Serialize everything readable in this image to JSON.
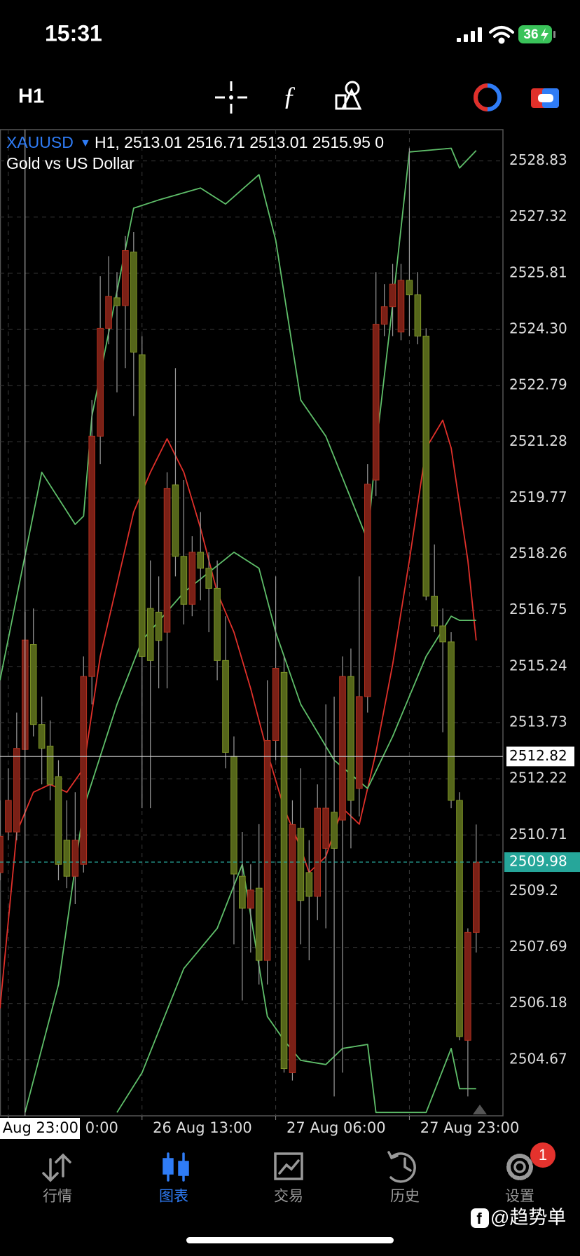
{
  "status_bar": {
    "time": "15:31",
    "battery": "36"
  },
  "toolbar": {
    "timeframe": "H1"
  },
  "chart_data": {
    "type": "candlestick",
    "symbol": "XAUUSD",
    "info": "H1, 2513.01 2516.71 2513.01 2515.95 0",
    "subtitle": "Gold vs US Dollar",
    "up_color": "#7a2016",
    "down_color": "#55661a",
    "xlim": [
      0,
      60.2
    ],
    "ylim": [
      2503.16,
      2529.67
    ],
    "yticks": [
      2528.83,
      2527.32,
      2525.81,
      {
        "value": 2524.3,
        "label": "2524.30"
      },
      2522.79,
      2521.28,
      2519.77,
      2518.26,
      2516.75,
      2515.24,
      2513.73,
      2512.22,
      2510.71,
      2509.2,
      2507.69,
      2506.18,
      2504.67
    ],
    "xticks": [
      {
        "value": 1,
        "label": "0:00"
      },
      {
        "value": 17,
        "label": "26 Aug 13:00"
      },
      {
        "value": 33,
        "label": "27 Aug 06:00"
      },
      {
        "value": 49,
        "label": "27 Aug 23:00"
      }
    ],
    "grid": true,
    "open": [
      2509.7,
      2510.79,
      2510.79,
      2513.01,
      2515.83,
      2513.68,
      2513.1,
      2512.28,
      2510.57,
      2509.6,
      2509.92,
      2514.97,
      2521.43,
      2524.33,
      2525.15,
      2524.94,
      2526.38,
      2523.62,
      2516.8,
      2516.7,
      2516.16,
      2520.12,
      2518.2,
      2516.91,
      2518.31,
      2517.88,
      2517.34,
      2515.4,
      2512.82,
      2509.6,
      2508.74,
      2509.28,
      2507.34,
      2513.25,
      2515.08,
      2504.32,
      2510.89,
      2509.7,
      2509.06,
      2510.35,
      2511.32,
      2511.11,
      2514.97,
      2511.96,
      2514.43,
      2520.25,
      2524.44,
      2524.91,
      2524.23,
      2525.62,
      2525.23,
      2524.12,
      2517.13,
      2516.33,
      2515.9,
      2511.64,
      2505.19,
      2508.09
    ],
    "high": [
      2511.64,
      2512.5,
      2514.0,
      2516.71,
      2516.8,
      2514.43,
      2513.79,
      2512.72,
      2511.64,
      2511.86,
      2515.51,
      2522.4,
      2525.73,
      2526.27,
      2525.84,
      2526.81,
      2526.92,
      2524.12,
      2518.09,
      2517.66,
      2520.46,
      2523.26,
      2520.25,
      2518.74,
      2519.39,
      2518.31,
      2518.09,
      2516.59,
      2513.36,
      2510.79,
      2509.92,
      2511.0,
      2514.87,
      2517.66,
      2515.51,
      2511.64,
      2512.5,
      2510.57,
      2512.07,
      2514.22,
      2514.43,
      2515.51,
      2515.72,
      2517.66,
      2520.68,
      2525.84,
      2525.52,
      2526.06,
      2526.06,
      2529.17,
      2525.84,
      2524.33,
      2518.52,
      2516.8,
      2516.16,
      2511.86,
      2508.2,
      2510.99
    ],
    "low": [
      2509.49,
      2510.57,
      2510.57,
      2513.01,
      2513.36,
      2512.07,
      2511.64,
      2509.49,
      2509.28,
      2508.85,
      2509.7,
      2514.22,
      2520.68,
      2523.9,
      2522.61,
      2523.26,
      2521.97,
      2511.43,
      2511.43,
      2514.65,
      2514.65,
      2517.66,
      2516.37,
      2516.59,
      2517.02,
      2516.16,
      2514.87,
      2512.5,
      2507.77,
      2506.26,
      2507.55,
      2506.69,
      2506.69,
      2512.72,
      2504.32,
      2504.11,
      2507.77,
      2507.34,
      2508.42,
      2508.2,
      2503.68,
      2504.32,
      2510.35,
      2511.21,
      2514.0,
      2519.82,
      2524.12,
      2524.12,
      2524.01,
      2524.12,
      2523.9,
      2517.02,
      2516.16,
      2513.47,
      2511.43,
      2505.19,
      2503.68,
      2507.55
    ],
    "close": [
      2510.67,
      2511.64,
      2513.04,
      2515.95,
      2513.68,
      2513.04,
      2512.07,
      2509.92,
      2509.6,
      2510.57,
      2514.97,
      2521.43,
      2524.33,
      2525.19,
      2524.94,
      2526.42,
      2523.69,
      2515.51,
      2515.4,
      2515.94,
      2520.03,
      2518.2,
      2516.91,
      2518.31,
      2517.88,
      2517.34,
      2515.4,
      2512.93,
      2509.66,
      2508.74,
      2509.23,
      2507.34,
      2513.25,
      2515.19,
      2504.43,
      2510.99,
      2508.95,
      2509.06,
      2511.43,
      2511.43,
      2510.35,
      2514.97,
      2511.64,
      2514.43,
      2520.14,
      2524.44,
      2524.91,
      2525.52,
      2525.62,
      2525.23,
      2524.12,
      2517.13,
      2516.33,
      2515.9,
      2511.64,
      2505.29,
      2508.09,
      2509.98
    ],
    "series": [
      {
        "color": "#e0302a",
        "x": [
          0,
          2,
          4,
          6,
          8,
          10,
          12,
          14,
          16,
          18,
          20,
          22,
          24,
          26,
          28,
          30,
          32,
          34,
          36,
          37,
          39,
          41,
          43,
          45,
          47,
          49,
          51,
          53,
          54,
          56,
          57
        ],
        "values": [
          2506.05,
          2510.78,
          2511.86,
          2512.07,
          2511.86,
          2512.5,
          2515.51,
          2517.45,
          2519.39,
          2520.46,
          2521.36,
          2520.46,
          2518.96,
          2517.23,
          2516.16,
          2514.65,
          2512.93,
          2511.43,
          2510.35,
          2509.7,
          2510.13,
          2511.43,
          2511.0,
          2512.93,
          2515.3,
          2518.09,
          2521.11,
          2521.86,
          2521.11,
          2518.09,
          2515.94
        ]
      },
      {
        "color": "#5fbf6a",
        "x": [
          0,
          5,
          9,
          10,
          11,
          16,
          19,
          24,
          27,
          31,
          33,
          36,
          39,
          44,
          45,
          47,
          49,
          54,
          55,
          57
        ],
        "values": [
          2514.87,
          2520.46,
          2519.06,
          2519.28,
          2521.97,
          2527.56,
          2527.78,
          2528.1,
          2527.67,
          2528.46,
          2526.7,
          2522.4,
          2521.43,
          2518.63,
          2521.11,
          2524.98,
          2529.07,
          2529.17,
          2528.64,
          2529.11
        ]
      },
      {
        "color": "#5fbf6a",
        "x": [
          3,
          7,
          10,
          14,
          17,
          22,
          28,
          31,
          33,
          36,
          40,
          44,
          47,
          51,
          54,
          55,
          57
        ],
        "values": [
          2503.25,
          2506.69,
          2511.43,
          2514.22,
          2515.94,
          2517.23,
          2518.31,
          2517.88,
          2516.16,
          2514.22,
          2512.72,
          2511.96,
          2513.36,
          2515.51,
          2516.59,
          2516.48,
          2516.48
        ]
      },
      {
        "color": "#5fbf6a",
        "x": [
          14,
          17,
          22,
          26,
          29,
          32,
          34,
          36,
          39,
          41,
          44,
          45,
          51,
          54,
          55,
          57
        ],
        "values": [
          2503.25,
          2504.32,
          2507.12,
          2508.2,
          2509.92,
          2505.83,
          2505.19,
          2504.65,
          2504.54,
          2504.97,
          2505.08,
          2503.25,
          2503.25,
          2504.97,
          2503.89,
          2503.89
        ]
      }
    ],
    "crosshair": {
      "x": 3,
      "price": 2512.82,
      "time_label": "Aug 23:00"
    },
    "bid": {
      "price": 2509.98,
      "color": "#26a69a"
    }
  },
  "nav": {
    "items": [
      "行情",
      "图表",
      "交易",
      "历史",
      "设置"
    ],
    "active": 1,
    "active_color": "#2f7cf6",
    "badge": "1"
  },
  "watermark": "@趋势单"
}
